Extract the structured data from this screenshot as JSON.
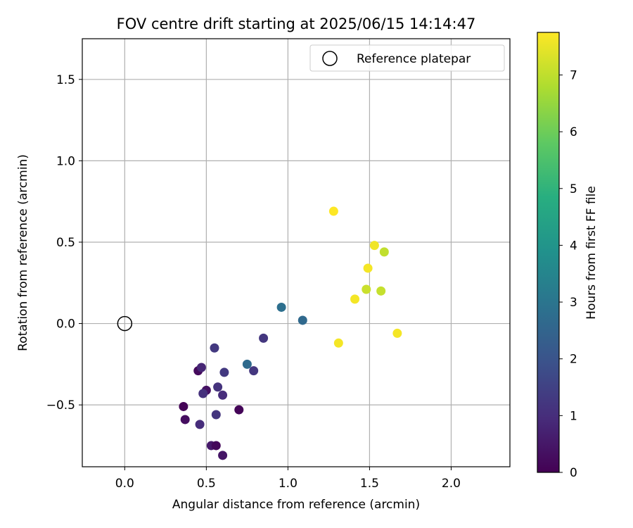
{
  "chart_data": {
    "type": "scatter",
    "title": "FOV centre drift starting at 2025/06/15 14:14:47",
    "xlabel": "Angular distance from reference (arcmin)",
    "ylabel": "Rotation from reference (arcmin)",
    "xlim": [
      -0.26,
      2.36
    ],
    "ylim": [
      -0.88,
      1.75
    ],
    "xticks": [
      0.0,
      0.5,
      1.0,
      1.5,
      2.0
    ],
    "xtick_labels": [
      "0.0",
      "0.5",
      "1.0",
      "1.5",
      "2.0"
    ],
    "yticks": [
      -0.5,
      0.0,
      0.5,
      1.0,
      1.5
    ],
    "ytick_labels": [
      "−0.5",
      "0.0",
      "0.5",
      "1.0",
      "1.5"
    ],
    "grid": true,
    "legend": {
      "position": "top-right",
      "entries": [
        "Reference platepar"
      ]
    },
    "reference_point": {
      "x": 0.0,
      "y": 0.0,
      "label": "Reference platepar"
    },
    "colorbar": {
      "label": "Hours from first FF file",
      "min": 0,
      "max": 7.75,
      "ticks": [
        0,
        1,
        2,
        3,
        4,
        5,
        6,
        7
      ],
      "tick_labels": [
        "0",
        "1",
        "2",
        "3",
        "4",
        "5",
        "6",
        "7"
      ],
      "colormap": "viridis"
    },
    "points": [
      {
        "x": 0.36,
        "y": -0.51,
        "hours": 0.05
      },
      {
        "x": 0.37,
        "y": -0.59,
        "hours": 0.3
      },
      {
        "x": 0.45,
        "y": -0.29,
        "hours": 0.2
      },
      {
        "x": 0.5,
        "y": -0.41,
        "hours": 0.35
      },
      {
        "x": 0.47,
        "y": -0.27,
        "hours": 0.85
      },
      {
        "x": 0.46,
        "y": -0.62,
        "hours": 1.0
      },
      {
        "x": 0.48,
        "y": -0.43,
        "hours": 1.1
      },
      {
        "x": 0.53,
        "y": -0.75,
        "hours": 0.55
      },
      {
        "x": 0.56,
        "y": -0.75,
        "hours": 0.15
      },
      {
        "x": 0.6,
        "y": -0.81,
        "hours": 0.45
      },
      {
        "x": 0.55,
        "y": -0.15,
        "hours": 1.3
      },
      {
        "x": 0.57,
        "y": -0.39,
        "hours": 1.15
      },
      {
        "x": 0.56,
        "y": -0.56,
        "hours": 1.2
      },
      {
        "x": 0.6,
        "y": -0.44,
        "hours": 1.0
      },
      {
        "x": 0.61,
        "y": -0.3,
        "hours": 1.3
      },
      {
        "x": 0.7,
        "y": -0.53,
        "hours": 0.1
      },
      {
        "x": 0.75,
        "y": -0.25,
        "hours": 2.7
      },
      {
        "x": 0.79,
        "y": -0.29,
        "hours": 1.25
      },
      {
        "x": 0.85,
        "y": -0.09,
        "hours": 1.25
      },
      {
        "x": 0.96,
        "y": 0.1,
        "hours": 2.85
      },
      {
        "x": 1.09,
        "y": 0.02,
        "hours": 2.65
      },
      {
        "x": 1.28,
        "y": 0.69,
        "hours": 7.75
      },
      {
        "x": 1.31,
        "y": -0.12,
        "hours": 7.65
      },
      {
        "x": 1.41,
        "y": 0.15,
        "hours": 7.65
      },
      {
        "x": 1.48,
        "y": 0.21,
        "hours": 7.15
      },
      {
        "x": 1.49,
        "y": 0.34,
        "hours": 7.65
      },
      {
        "x": 1.53,
        "y": 0.48,
        "hours": 7.6
      },
      {
        "x": 1.57,
        "y": 0.2,
        "hours": 7.1
      },
      {
        "x": 1.59,
        "y": 0.44,
        "hours": 7.05
      },
      {
        "x": 1.67,
        "y": -0.06,
        "hours": 7.65
      }
    ]
  }
}
